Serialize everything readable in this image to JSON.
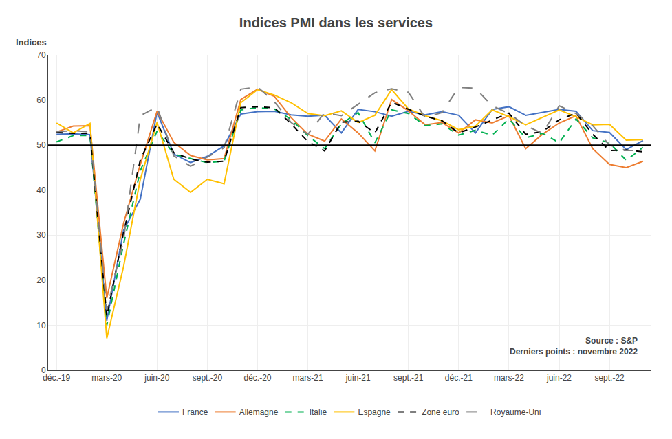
{
  "chart_data": {
    "type": "line",
    "title": "Indices PMI dans les services",
    "ylabel": "Indices",
    "annotations": [
      {
        "text": "Source : S&P\nDerniers points : novembre 2022"
      }
    ],
    "categories": [
      "déc.-19",
      null,
      null,
      "mars-20",
      null,
      null,
      "juin-20",
      null,
      null,
      "sept.-20",
      null,
      null,
      "déc.-20",
      null,
      null,
      "mars-21",
      null,
      null,
      "juin-21",
      null,
      null,
      "sept.-21",
      null,
      null,
      "déc.-21",
      null,
      null,
      "mars-22",
      null,
      null,
      "juin-22",
      null,
      null,
      "sept.-22",
      null,
      null
    ],
    "ylim": [
      0,
      70
    ],
    "yticks": [
      0,
      10,
      20,
      30,
      40,
      50,
      60,
      70
    ],
    "hline": 50,
    "grid": true,
    "legend": "bottom",
    "series": [
      {
        "name": "France",
        "color": "#4472C4",
        "line_style": "solid",
        "values": [
          52.4,
          52.5,
          52.3,
          11.0,
          31.1,
          38.0,
          57.3,
          48.0,
          46.1,
          47.5,
          49.8,
          56.9,
          57.4,
          57.5,
          56.7,
          56.4,
          56.6,
          52.7,
          57.9,
          57.4,
          56.4,
          57.5,
          56.7,
          57.4,
          56.6,
          52.7,
          57.9,
          58.5,
          56.6,
          57.3,
          57.9,
          57.5,
          53.2,
          52.8,
          49.0,
          51.0
        ]
      },
      {
        "name": "Allemagne",
        "color": "#ED7D31",
        "line_style": "solid",
        "values": [
          52.9,
          54.2,
          54.3,
          16.0,
          32.6,
          45.7,
          57.5,
          50.6,
          47.7,
          46.7,
          47.0,
          60.1,
          62.4,
          60.8,
          56.1,
          52.4,
          50.9,
          55.8,
          52.7,
          48.7,
          60.1,
          57.6,
          54.5,
          55.0,
          52.7,
          55.6,
          54.9,
          56.5,
          49.2,
          52.4,
          54.9,
          56.5,
          49.2,
          45.7,
          45.0,
          46.4
        ]
      },
      {
        "name": "Italie",
        "color": "#00B050",
        "line_style": "dashed",
        "values": [
          50.7,
          52.1,
          52.1,
          10.0,
          28.0,
          44.3,
          53.1,
          48.0,
          47.0,
          46.1,
          46.4,
          57.8,
          58.3,
          58.0,
          55.7,
          52.1,
          49.2,
          54.7,
          57.2,
          50.5,
          57.8,
          57.0,
          54.3,
          54.7,
          52.2,
          53.3,
          52.2,
          55.8,
          51.6,
          52.6,
          50.5,
          55.8,
          51.6,
          50.5,
          46.6,
          49.5
        ]
      },
      {
        "name": "Espagne",
        "color": "#FFC000",
        "line_style": "solid",
        "values": [
          54.9,
          52.7,
          54.8,
          7.1,
          23.0,
          42.4,
          55.0,
          42.4,
          39.5,
          42.4,
          41.4,
          59.4,
          62.3,
          61.1,
          59.4,
          57.0,
          56.5,
          57.6,
          55.0,
          56.6,
          62.3,
          58.0,
          56.5,
          55.4,
          53.4,
          54.2,
          57.8,
          56.3,
          54.5,
          56.1,
          57.8,
          56.3,
          54.5,
          54.6,
          51.1,
          51.2
        ]
      },
      {
        "name": "Zone euro",
        "color": "#000000",
        "line_style": "dashed",
        "values": [
          52.8,
          52.6,
          52.6,
          12.0,
          30.5,
          46.7,
          54.7,
          48.3,
          46.9,
          46.2,
          46.4,
          58.3,
          58.5,
          58.3,
          54.7,
          50.8,
          48.7,
          55.1,
          55.3,
          52.7,
          59.5,
          58.0,
          56.4,
          55.4,
          52.7,
          54.0,
          55.6,
          57.1,
          52.4,
          53.0,
          55.6,
          57.1,
          52.4,
          48.8,
          48.9,
          48.5
        ]
      },
      {
        "name": "Royaume-Uni",
        "color": "#808080",
        "line_style": "longdashed",
        "values": [
          53.0,
          53.2,
          52.9,
          13.4,
          29.0,
          56.5,
          58.5,
          47.6,
          45.3,
          47.4,
          49.4,
          62.4,
          62.9,
          59.6,
          55.0,
          52.4,
          57.2,
          56.5,
          59.1,
          61.6,
          62.5,
          61.7,
          56.1,
          57.2,
          62.8,
          62.6,
          58.7,
          57.0,
          54.3,
          52.6,
          58.7,
          57.0,
          54.3,
          50.0,
          48.8,
          48.8
        ]
      }
    ]
  }
}
